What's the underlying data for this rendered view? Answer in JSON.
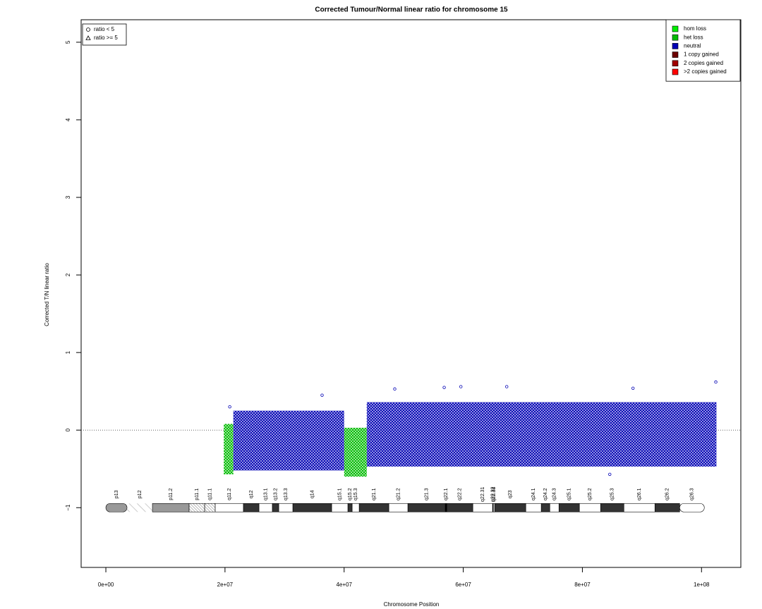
{
  "chart_data": {
    "type": "scatter",
    "title": "Corrected Tumour/Normal linear ratio for chromosome  15",
    "x_label": "Chromosome Position",
    "y_label": "Corrected T/N linear ratio",
    "xlim": [
      -4150000,
      106600000
    ],
    "ylim": [
      -1.77,
      5.29
    ],
    "xticks": [
      {
        "value": 0,
        "label": "0e+00"
      },
      {
        "value": 20000000,
        "label": "2e+07"
      },
      {
        "value": 40000000,
        "label": "4e+07"
      },
      {
        "value": 60000000,
        "label": "6e+07"
      },
      {
        "value": 80000000,
        "label": "8e+07"
      },
      {
        "value": 100000000,
        "label": "1e+08"
      }
    ],
    "yticks": [
      {
        "value": -1,
        "label": "−1"
      },
      0,
      1,
      2,
      3,
      4,
      5
    ],
    "reference_line": 0,
    "shape_legend": [
      "ratio < 5",
      "ratio >= 5"
    ],
    "legend_position": "top-right",
    "series": [
      {
        "name": "hom loss",
        "color": "#00ee00",
        "segments": []
      },
      {
        "name": "het loss",
        "color": "#00bb00",
        "segments": [
          {
            "start": 19800000,
            "end": 21400000,
            "low": -0.57,
            "high": 0.08
          },
          {
            "start": 40000000,
            "end": 43800000,
            "low": -0.6,
            "high": 0.03
          }
        ]
      },
      {
        "name": "neutral",
        "color": "#0000b4",
        "segments": [
          {
            "start": 21400000,
            "end": 40000000,
            "low": -0.52,
            "high": 0.25
          },
          {
            "start": 43800000,
            "end": 102500000,
            "low": -0.47,
            "high": 0.36
          }
        ]
      },
      {
        "name": "1 copy gained",
        "color": "#6b0000",
        "segments": []
      },
      {
        "name": "2 copies gained",
        "color": "#a00000",
        "segments": []
      },
      {
        "name": ">2 copies gained",
        "color": "#ff0000",
        "segments": []
      }
    ],
    "outliers": [
      {
        "x": 36300000,
        "y": 0.45
      },
      {
        "x": 48500000,
        "y": 0.53
      },
      {
        "x": 56800000,
        "y": 0.55
      },
      {
        "x": 59600000,
        "y": 0.56
      },
      {
        "x": 67300000,
        "y": 0.56
      },
      {
        "x": 88500000,
        "y": 0.54
      },
      {
        "x": 102400000,
        "y": 0.62
      },
      {
        "x": 20800000,
        "y": 0.3
      },
      {
        "x": 84600000,
        "y": -0.57
      }
    ],
    "cytobands": [
      {
        "name": "p13",
        "start": 0,
        "end": 3550000,
        "fill": "#999999"
      },
      {
        "name": "p12",
        "start": 3550000,
        "end": 7820000,
        "fill": "stalk"
      },
      {
        "name": "p11.2",
        "start": 7820000,
        "end": 13980000,
        "fill": "#999999"
      },
      {
        "name": "p11.1",
        "start": 13980000,
        "end": 16590000,
        "fill": "acen"
      },
      {
        "name": "q11.1",
        "start": 16590000,
        "end": 18360000,
        "fill": "acen"
      },
      {
        "name": "q11.2",
        "start": 18360000,
        "end": 23100000,
        "fill": "#ffffff"
      },
      {
        "name": "q12",
        "start": 23100000,
        "end": 25710000,
        "fill": "#333333"
      },
      {
        "name": "q13.1",
        "start": 25710000,
        "end": 27960000,
        "fill": "#ffffff"
      },
      {
        "name": "q13.2",
        "start": 27960000,
        "end": 29030000,
        "fill": "#333333"
      },
      {
        "name": "q13.3",
        "start": 29030000,
        "end": 31400000,
        "fill": "#ffffff"
      },
      {
        "name": "q14",
        "start": 31400000,
        "end": 37910000,
        "fill": "#333333"
      },
      {
        "name": "q15.1",
        "start": 37910000,
        "end": 40640000,
        "fill": "#ffffff"
      },
      {
        "name": "q15.2",
        "start": 40640000,
        "end": 41350000,
        "fill": "#333333"
      },
      {
        "name": "q15.3",
        "start": 41350000,
        "end": 42540000,
        "fill": "#ffffff"
      },
      {
        "name": "q21.1",
        "start": 42540000,
        "end": 47510000,
        "fill": "#333333"
      },
      {
        "name": "q21.2",
        "start": 47510000,
        "end": 50710000,
        "fill": "#ffffff"
      },
      {
        "name": "q21.3",
        "start": 50710000,
        "end": 56990000,
        "fill": "#333333"
      },
      {
        "name": "q22.1",
        "start": 56990000,
        "end": 57230000,
        "fill": "#000000"
      },
      {
        "name": "q22.2",
        "start": 57230000,
        "end": 61610000,
        "fill": "#333333"
      },
      {
        "name": "q22.31",
        "start": 61610000,
        "end": 64930000,
        "fill": "#ffffff"
      },
      {
        "name": "q22.32",
        "start": 64930000,
        "end": 65050000,
        "fill": "#000000"
      },
      {
        "name": "q22.33",
        "start": 65050000,
        "end": 65280000,
        "fill": "#ffffff"
      },
      {
        "name": "q23",
        "start": 65280000,
        "end": 70500000,
        "fill": "#333333"
      },
      {
        "name": "q24.1",
        "start": 70500000,
        "end": 73100000,
        "fill": "#ffffff"
      },
      {
        "name": "q24.2",
        "start": 73100000,
        "end": 74530000,
        "fill": "#333333"
      },
      {
        "name": "q24.3",
        "start": 74530000,
        "end": 76070000,
        "fill": "#ffffff"
      },
      {
        "name": "q25.1",
        "start": 76070000,
        "end": 79500000,
        "fill": "#333333"
      },
      {
        "name": "q25.2",
        "start": 79500000,
        "end": 83060000,
        "fill": "#ffffff"
      },
      {
        "name": "q25.3",
        "start": 83060000,
        "end": 86970000,
        "fill": "#333333"
      },
      {
        "name": "q26.1",
        "start": 86970000,
        "end": 92180000,
        "fill": "#ffffff"
      },
      {
        "name": "q26.2",
        "start": 92180000,
        "end": 96330000,
        "fill": "#333333"
      },
      {
        "name": "q26.3",
        "start": 96330000,
        "end": 100470000,
        "fill": "#ffffff"
      }
    ]
  }
}
